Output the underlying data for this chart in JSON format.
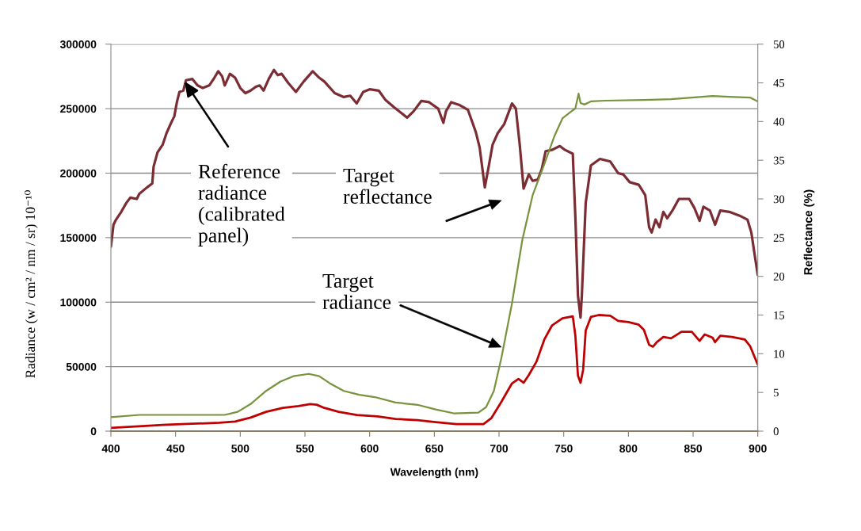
{
  "chart_data": {
    "type": "line",
    "xlabel": "Wavelength (nm)",
    "ylabel": "Radiance (w / cm² / nm / sr) 10⁻¹⁰",
    "y2label": "Reflectance (%)",
    "xlim": [
      400,
      900
    ],
    "xticks": [
      400,
      450,
      500,
      550,
      600,
      650,
      700,
      750,
      800,
      850,
      900
    ],
    "ylim": [
      0,
      300000
    ],
    "yticks": [
      0,
      50000,
      100000,
      150000,
      200000,
      250000,
      300000
    ],
    "y2lim": [
      0,
      50
    ],
    "y2ticks": [
      0,
      5,
      10,
      15,
      20,
      25,
      30,
      35,
      40,
      45,
      50
    ],
    "grid": "y",
    "series": [
      {
        "color": "#7b2d33",
        "x": [
          400,
          402,
          404,
          408,
          412,
          415,
          420,
          422,
          428,
          432,
          433,
          436,
          440,
          443,
          447,
          449,
          451,
          453,
          456,
          458,
          463,
          467,
          471,
          476,
          480,
          483,
          486,
          488,
          492,
          496,
          500,
          504,
          508,
          512,
          515,
          518,
          522,
          526,
          529,
          532,
          537,
          543,
          549,
          556,
          561,
          565,
          573,
          580,
          585,
          590,
          595,
          600,
          607,
          612,
          619,
          629,
          634,
          640,
          646,
          653,
          657,
          659,
          663,
          669,
          676,
          682,
          685,
          689,
          692,
          695,
          699,
          704,
          710,
          713,
          716,
          719,
          723,
          726,
          730,
          733,
          736,
          741,
          747,
          751,
          757,
          759,
          761,
          763,
          764,
          767,
          771,
          778,
          786,
          792,
          796,
          801,
          808,
          813,
          816,
          818,
          821,
          824,
          827,
          830,
          834,
          839,
          847,
          851,
          855,
          858,
          863,
          867,
          871,
          878,
          886,
          892,
          895,
          898,
          900
        ],
        "values": [
          143000,
          160000,
          164000,
          170000,
          177000,
          181000,
          180000,
          184000,
          189000,
          192000,
          205000,
          216000,
          222000,
          231000,
          240000,
          244000,
          255000,
          263000,
          264000,
          272000,
          273000,
          268000,
          266000,
          268000,
          274000,
          279000,
          275000,
          268000,
          277000,
          274000,
          266000,
          262000,
          264000,
          267000,
          268000,
          264000,
          273000,
          280000,
          276000,
          277000,
          270000,
          263000,
          271000,
          279000,
          274000,
          271000,
          262000,
          259000,
          260000,
          254000,
          263000,
          265000,
          264000,
          257000,
          251000,
          243000,
          248000,
          256000,
          255000,
          250000,
          239000,
          248000,
          255000,
          253000,
          249000,
          232000,
          220000,
          189000,
          205000,
          222000,
          231000,
          238000,
          254000,
          250000,
          222000,
          188000,
          199000,
          194000,
          195000,
          203000,
          217000,
          218000,
          221000,
          218000,
          215000,
          166000,
          105000,
          88000,
          105000,
          177000,
          206000,
          211000,
          209000,
          200000,
          199000,
          193000,
          191000,
          183000,
          158000,
          154000,
          164000,
          158000,
          170000,
          165000,
          171000,
          180000,
          180000,
          173000,
          163000,
          174000,
          171000,
          160000,
          171000,
          170000,
          167000,
          164000,
          154000,
          134000,
          121000
        ]
      },
      {
        "color": "#c00000",
        "x": [
          400,
          443,
          484,
          496,
          508,
          520,
          533,
          545,
          554,
          559,
          565,
          576,
          590,
          606,
          620,
          637,
          651,
          667,
          688,
          694,
          702,
          710,
          715,
          719,
          723,
          729,
          735,
          741,
          749,
          757,
          759,
          761,
          763,
          765,
          767,
          771,
          777,
          786,
          792,
          800,
          808,
          812,
          816,
          819,
          822,
          827,
          833,
          841,
          849,
          855,
          859,
          865,
          867,
          871,
          880,
          890,
          894,
          900
        ],
        "values": [
          2500,
          5000,
          6500,
          7500,
          10500,
          15000,
          18000,
          19500,
          21000,
          20500,
          18000,
          15000,
          12500,
          11500,
          9500,
          8500,
          7000,
          5500,
          5500,
          10000,
          23000,
          37000,
          40500,
          37500,
          43500,
          54000,
          71000,
          82000,
          87500,
          89000,
          74000,
          43000,
          37500,
          47500,
          78000,
          88500,
          90000,
          89500,
          85500,
          84500,
          82500,
          78500,
          67000,
          65500,
          69000,
          73000,
          72000,
          77000,
          77000,
          70000,
          75000,
          72500,
          69000,
          74000,
          73000,
          71000,
          66000,
          51500
        ]
      },
      {
        "color": "#77933c",
        "axis": "y2",
        "x": [
          400,
          422,
          463,
          488,
          498,
          508,
          520,
          531,
          541,
          553,
          561,
          569,
          580,
          592,
          604,
          620,
          637,
          651,
          665,
          684,
          690,
          696,
          702,
          710,
          718,
          726,
          735,
          743,
          749,
          755,
          759,
          761.5,
          763,
          766,
          771,
          782,
          812,
          833,
          849,
          865,
          878,
          894,
          900
        ],
        "values": [
          1.8,
          2.1,
          2.1,
          2.1,
          2.5,
          3.5,
          5.2,
          6.4,
          7.1,
          7.4,
          7.1,
          6.2,
          5.2,
          4.7,
          4.4,
          3.7,
          3.4,
          2.8,
          2.3,
          2.4,
          3.1,
          5.2,
          9.6,
          16.5,
          24.7,
          30.5,
          34.5,
          38.2,
          40.4,
          41.2,
          41.7,
          43.6,
          42.4,
          42.2,
          42.6,
          42.7,
          42.8,
          42.9,
          43.1,
          43.3,
          43.2,
          43.1,
          42.6
        ]
      }
    ],
    "annotations": [
      {
        "text": "Reference\nradiance\n(calibrated\npanel)",
        "x": 457,
        "y": 271000
      },
      "Target\nreflectance",
      "Target\nradiance"
    ]
  }
}
